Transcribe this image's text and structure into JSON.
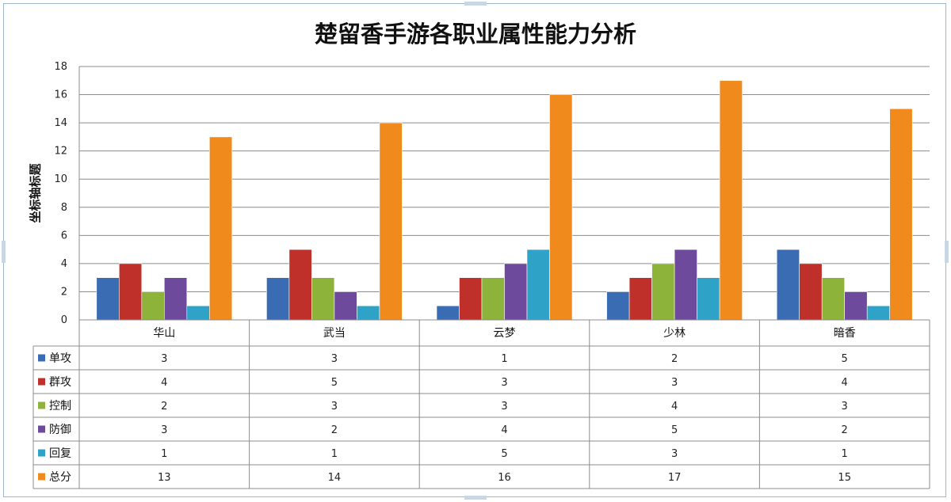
{
  "chart_data": {
    "type": "bar",
    "title": "楚留香手游各职业属性能力分析",
    "ylabel": "坐标轴标题",
    "xlabel": "",
    "ylim": [
      0,
      18
    ],
    "yticks": [
      0,
      2,
      4,
      6,
      8,
      10,
      12,
      14,
      16,
      18
    ],
    "grid": true,
    "legend": "data-table",
    "categories": [
      "华山",
      "武当",
      "云梦",
      "少林",
      "暗香"
    ],
    "series": [
      {
        "name": "单攻",
        "color": "#3a6cb4",
        "values": [
          3,
          3,
          1,
          2,
          5
        ]
      },
      {
        "name": "群攻",
        "color": "#c0302b",
        "values": [
          4,
          5,
          3,
          3,
          4
        ]
      },
      {
        "name": "控制",
        "color": "#8db33a",
        "values": [
          2,
          3,
          3,
          4,
          3
        ]
      },
      {
        "name": "防御",
        "color": "#6e4a9c",
        "values": [
          3,
          2,
          4,
          5,
          2
        ]
      },
      {
        "name": "回复",
        "color": "#2ea3c7",
        "values": [
          1,
          1,
          5,
          3,
          1
        ]
      },
      {
        "name": "总分",
        "color": "#f08a1c",
        "values": [
          13,
          14,
          16,
          17,
          15
        ]
      }
    ]
  }
}
